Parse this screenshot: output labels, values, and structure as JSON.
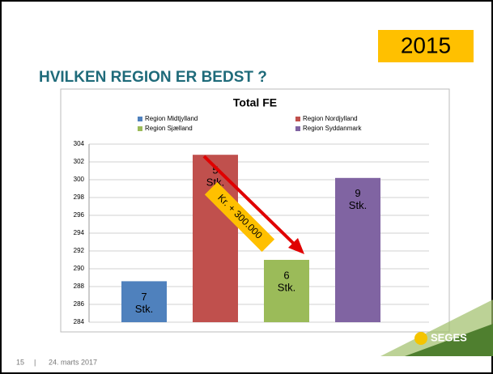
{
  "header": {
    "title": "HVILKEN REGION ER BEDST ?",
    "year": "2015"
  },
  "chart_data": {
    "type": "bar",
    "title": "Total FE",
    "series": [
      {
        "name": "Region Midtjylland",
        "color": "#4f81bd",
        "values": [
          288.6
        ]
      },
      {
        "name": "Region Nordjylland",
        "color": "#c0504d",
        "values": [
          302.8
        ]
      },
      {
        "name": "Region Sjælland",
        "color": "#9bbb59",
        "values": [
          291.0
        ]
      },
      {
        "name": "Region Syddanmark",
        "color": "#8064a2",
        "values": [
          300.2
        ]
      }
    ],
    "bar_labels": [
      [
        "7",
        "Stk."
      ],
      [
        "5",
        "Stk."
      ],
      [
        "6",
        "Stk."
      ],
      [
        "9",
        "Stk."
      ]
    ],
    "annotation": "Kr. + 300.000",
    "ylim": [
      284,
      304
    ],
    "yticks": [
      284,
      286,
      288,
      290,
      292,
      294,
      296,
      298,
      300,
      302,
      304
    ],
    "grid": true
  },
  "footer": {
    "page": "15",
    "separator": "|",
    "date": "24. marts 2017",
    "logo": "SEGES"
  }
}
